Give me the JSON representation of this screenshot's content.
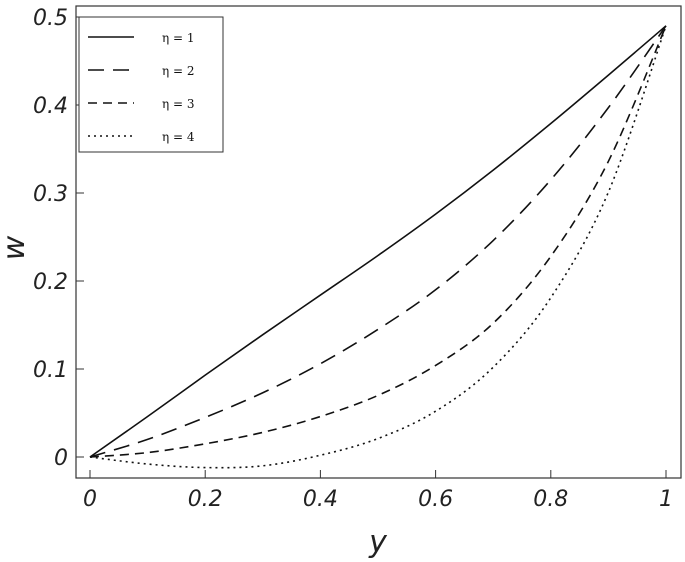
{
  "chart_data": {
    "type": "line",
    "title": "",
    "xlabel": "y",
    "ylabel": "w",
    "xlim": [
      0,
      1
    ],
    "ylim": [
      -0.02,
      0.5
    ],
    "xticks": [
      0,
      0.2,
      0.4,
      0.6,
      0.8,
      1
    ],
    "xtick_labels": [
      "0",
      "0.2",
      "0.4",
      "0.6",
      "0.8",
      "1"
    ],
    "yticks": [
      0,
      0.1,
      0.2,
      0.3,
      0.4,
      0.5
    ],
    "ytick_labels": [
      "0",
      "0.1",
      "0.2",
      "0.3",
      "0.4",
      "0.5"
    ],
    "grid": false,
    "legend_position": "top-left",
    "x": [
      0,
      0.1,
      0.2,
      0.3,
      0.4,
      0.5,
      0.6,
      0.7,
      0.8,
      0.9,
      1.0
    ],
    "series": [
      {
        "name": "η = 1",
        "dash": "solid",
        "values": [
          0,
          0.046,
          0.093,
          0.139,
          0.184,
          0.229,
          0.276,
          0.326,
          0.379,
          0.434,
          0.49
        ]
      },
      {
        "name": "η = 2",
        "dash": "long-dash",
        "values": [
          0,
          0.02,
          0.045,
          0.073,
          0.106,
          0.145,
          0.19,
          0.246,
          0.315,
          0.397,
          0.49
        ]
      },
      {
        "name": "η = 3",
        "dash": "short-dash",
        "values": [
          0,
          0.005,
          0.015,
          0.028,
          0.046,
          0.07,
          0.104,
          0.152,
          0.228,
          0.336,
          0.49
        ]
      },
      {
        "name": "η = 4",
        "dash": "dotted",
        "values": [
          0,
          -0.008,
          -0.012,
          -0.01,
          0.002,
          0.021,
          0.052,
          0.102,
          0.181,
          0.301,
          0.49
        ]
      }
    ]
  }
}
